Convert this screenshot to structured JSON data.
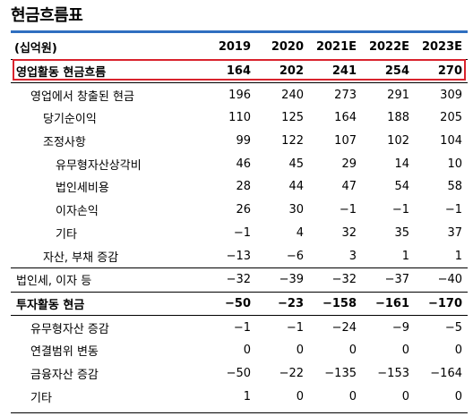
{
  "title": "현금흐름표",
  "header": {
    "unit": "(십억원)",
    "years": [
      "2019",
      "2020",
      "2021E",
      "2022E",
      "2023E"
    ]
  },
  "rows": [
    {
      "label": "영업활동 현금흐름",
      "values": [
        "164",
        "202",
        "241",
        "254",
        "270"
      ]
    },
    {
      "label": "영업에서 창출된 현금",
      "values": [
        "196",
        "240",
        "273",
        "291",
        "309"
      ]
    },
    {
      "label": "당기순이익",
      "values": [
        "110",
        "125",
        "164",
        "188",
        "205"
      ]
    },
    {
      "label": "조정사항",
      "values": [
        "99",
        "122",
        "107",
        "102",
        "104"
      ]
    },
    {
      "label": "유무형자산상각비",
      "values": [
        "46",
        "45",
        "29",
        "14",
        "10"
      ]
    },
    {
      "label": "법인세비용",
      "values": [
        "28",
        "44",
        "47",
        "54",
        "58"
      ]
    },
    {
      "label": "이자손익",
      "values": [
        "26",
        "30",
        "−1",
        "−1",
        "−1"
      ]
    },
    {
      "label": "기타",
      "values": [
        "−1",
        "4",
        "32",
        "35",
        "37"
      ]
    },
    {
      "label": "자산, 부채 증감",
      "values": [
        "−13",
        "−6",
        "3",
        "1",
        "1"
      ]
    },
    {
      "label": "법인세, 이자 등",
      "values": [
        "−32",
        "−39",
        "−32",
        "−37",
        "−40"
      ]
    },
    {
      "label": "투자활동 현금",
      "values": [
        "−50",
        "−23",
        "−158",
        "−161",
        "−170"
      ]
    },
    {
      "label": "유무형자산 증감",
      "values": [
        "−1",
        "−1",
        "−24",
        "−9",
        "−5"
      ]
    },
    {
      "label": "연결범위 변동",
      "values": [
        "0",
        "0",
        "0",
        "0",
        "0"
      ]
    },
    {
      "label": "금융자산 증감",
      "values": [
        "−50",
        "−22",
        "−135",
        "−153",
        "−164"
      ]
    },
    {
      "label": "기타",
      "values": [
        "1",
        "0",
        "0",
        "0",
        "0"
      ]
    }
  ]
}
